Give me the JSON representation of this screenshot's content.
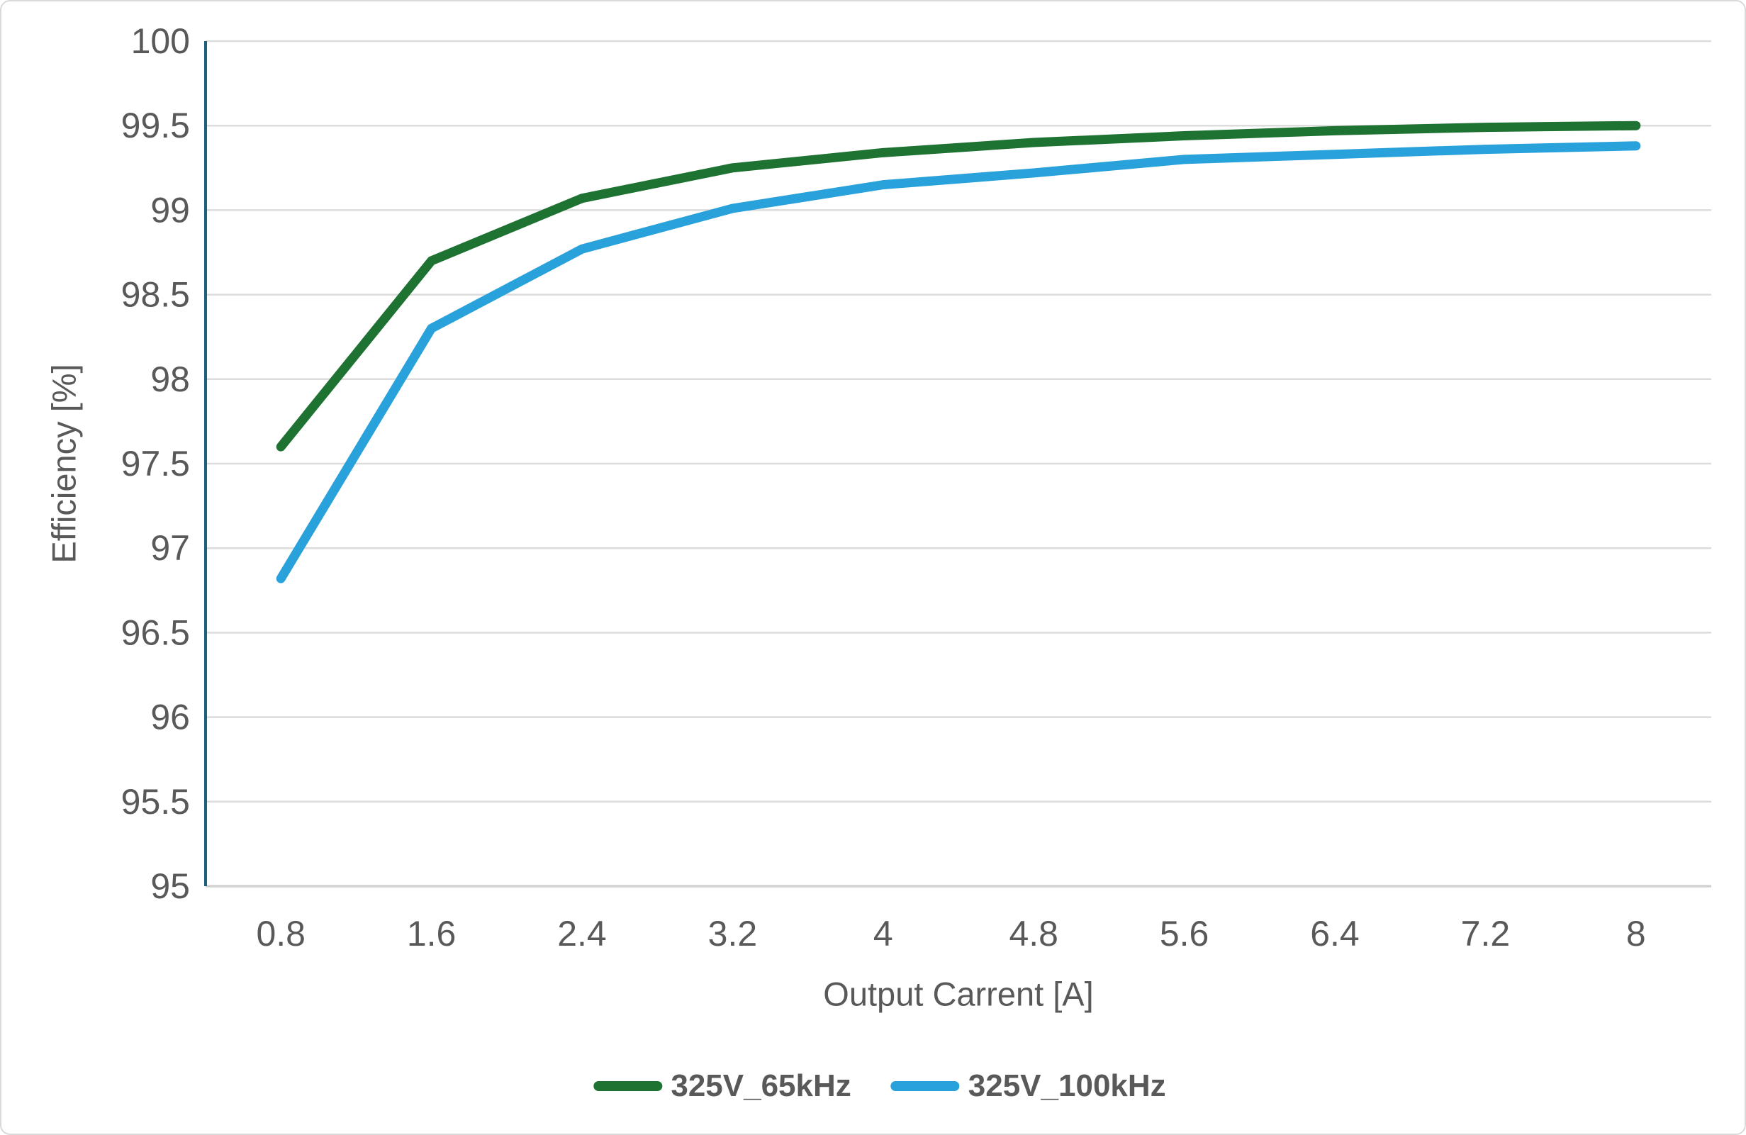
{
  "chart": {
    "background": "#FFFFFF",
    "frame_border_color": "#D9D9D9"
  },
  "chart_data": {
    "type": "line",
    "title": "",
    "xlabel": "Output Carrent [A]",
    "ylabel": "Efficiency [%]",
    "x": [
      0.8,
      1.6,
      2.4,
      3.2,
      4,
      4.8,
      5.6,
      6.4,
      7.2,
      8
    ],
    "x_tick_labels": [
      "0.8",
      "1.6",
      "2.4",
      "3.2",
      "4",
      "4.8",
      "5.6",
      "6.4",
      "7.2",
      "8"
    ],
    "ylim": [
      95,
      100
    ],
    "y_tick_step": 0.5,
    "y_tick_labels": [
      "95",
      "95.5",
      "96",
      "96.5",
      "97",
      "97.5",
      "98",
      "98.5",
      "99",
      "99.5",
      "100"
    ],
    "grid": "horizontal-only",
    "legend_position": "bottom-center",
    "series": [
      {
        "name": "325V_65kHz",
        "color": "#1E7232",
        "values": [
          97.6,
          98.7,
          99.07,
          99.25,
          99.34,
          99.4,
          99.44,
          99.47,
          99.49,
          99.5
        ]
      },
      {
        "name": "325V_100kHz",
        "color": "#29A2DB",
        "values": [
          96.82,
          98.3,
          98.77,
          99.01,
          99.15,
          99.22,
          99.3,
          99.33,
          99.36,
          99.38
        ]
      }
    ],
    "style": {
      "gridline_color": "#DCDCDC",
      "baseline_color": "#D2D2D2",
      "y_axis_line_color": "#20607C",
      "tick_label_color": "#595959",
      "line_width": 13
    }
  }
}
